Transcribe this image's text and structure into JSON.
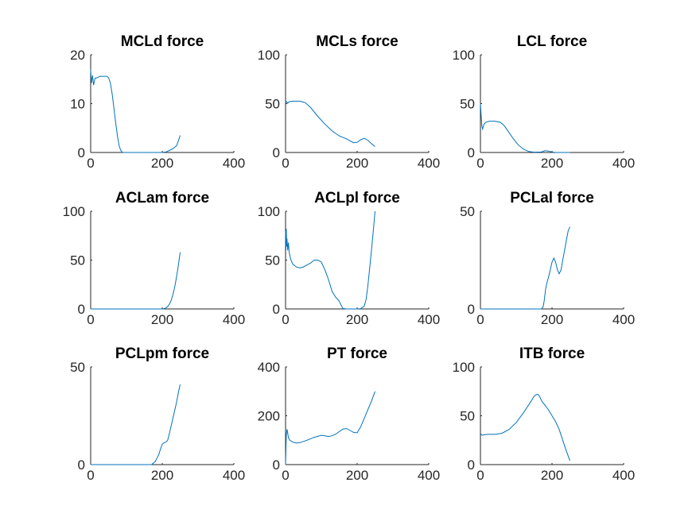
{
  "chart_data": [
    {
      "type": "line",
      "title": "MCLd force",
      "xlim": [
        0,
        400
      ],
      "ylim": [
        0,
        20
      ],
      "xticks": [
        "0",
        "200",
        "400"
      ],
      "yticks": [
        "0",
        "10",
        "20"
      ],
      "xtick_values": [
        0,
        200,
        400
      ],
      "ytick_values": [
        0,
        10,
        20
      ],
      "series": [
        {
          "color": "#0072bd",
          "x": [
            0,
            2,
            5,
            8,
            12,
            18,
            25,
            35,
            45,
            50,
            55,
            60,
            65,
            70,
            75,
            80,
            85,
            90,
            95,
            100,
            110,
            150,
            200,
            210,
            220,
            230,
            240,
            245,
            250
          ],
          "y": [
            17,
            14.2,
            15.8,
            13.8,
            15.2,
            15.3,
            15.6,
            15.6,
            15.6,
            15.3,
            14.2,
            12,
            9,
            6,
            3.2,
            1.2,
            0.3,
            0,
            0,
            0,
            0,
            0,
            0,
            0.1,
            0.4,
            0.8,
            1.4,
            2.4,
            3.5
          ]
        }
      ]
    },
    {
      "type": "line",
      "title": "MCLs force",
      "xlim": [
        0,
        400
      ],
      "ylim": [
        0,
        100
      ],
      "xticks": [
        "0",
        "200",
        "400"
      ],
      "yticks": [
        "0",
        "50",
        "100"
      ],
      "xtick_values": [
        0,
        200,
        400
      ],
      "ytick_values": [
        0,
        50,
        100
      ],
      "series": [
        {
          "color": "#0072bd",
          "x": [
            0,
            3,
            6,
            10,
            20,
            40,
            55,
            70,
            90,
            110,
            130,
            150,
            170,
            190,
            200,
            210,
            220,
            230,
            240,
            250
          ],
          "y": [
            51,
            52,
            50.5,
            52,
            52.5,
            52.5,
            51,
            46,
            37,
            29,
            22,
            17,
            14,
            10,
            10.5,
            13,
            14.5,
            12.5,
            9,
            6
          ]
        }
      ]
    },
    {
      "type": "line",
      "title": "LCL force",
      "xlim": [
        0,
        400
      ],
      "ylim": [
        0,
        100
      ],
      "xticks": [
        "0",
        "200",
        "400"
      ],
      "yticks": [
        "0",
        "50",
        "100"
      ],
      "xtick_values": [
        0,
        200,
        400
      ],
      "ytick_values": [
        0,
        50,
        100
      ],
      "series": [
        {
          "color": "#0072bd",
          "x": [
            0,
            2,
            4,
            6,
            10,
            15,
            25,
            40,
            55,
            65,
            75,
            90,
            105,
            120,
            135,
            150,
            170,
            180,
            190,
            200,
            210,
            250
          ],
          "y": [
            50,
            38,
            27,
            24,
            29,
            31,
            32,
            32,
            31,
            28,
            23,
            15,
            8,
            3.5,
            1,
            0.3,
            0.5,
            1.8,
            1.5,
            0.4,
            0,
            0
          ]
        }
      ]
    },
    {
      "type": "line",
      "title": "ACLam force",
      "xlim": [
        0,
        400
      ],
      "ylim": [
        0,
        100
      ],
      "xticks": [
        "0",
        "200",
        "400"
      ],
      "yticks": [
        "0",
        "50",
        "100"
      ],
      "xtick_values": [
        0,
        200,
        400
      ],
      "ytick_values": [
        0,
        50,
        100
      ],
      "series": [
        {
          "color": "#0072bd",
          "x": [
            0,
            100,
            200,
            205,
            210,
            215,
            220,
            225,
            230,
            235,
            240,
            245,
            250
          ],
          "y": [
            0,
            0,
            0,
            0.3,
            1,
            2.5,
            5,
            9,
            15,
            23,
            33,
            45,
            58
          ]
        }
      ]
    },
    {
      "type": "line",
      "title": "ACLpl force",
      "xlim": [
        0,
        400
      ],
      "ylim": [
        0,
        100
      ],
      "xticks": [
        "0",
        "200",
        "400"
      ],
      "yticks": [
        "0",
        "50",
        "100"
      ],
      "xtick_values": [
        0,
        200,
        400
      ],
      "ytick_values": [
        0,
        50,
        100
      ],
      "series": [
        {
          "color": "#0072bd",
          "x": [
            0,
            1,
            2,
            3,
            4,
            6,
            8,
            10,
            15,
            20,
            30,
            40,
            50,
            60,
            70,
            80,
            90,
            100,
            110,
            120,
            130,
            140,
            150,
            155,
            160,
            170,
            200,
            210,
            220,
            225,
            230,
            235,
            240,
            245,
            250
          ],
          "y": [
            80,
            60,
            82,
            64,
            72,
            60,
            68,
            58,
            50,
            46,
            43,
            42,
            43,
            45,
            47,
            50,
            50,
            48,
            40,
            30,
            18,
            12,
            8,
            4,
            0.5,
            0,
            0,
            0.3,
            3,
            10,
            24,
            42,
            60,
            80,
            100
          ]
        }
      ]
    },
    {
      "type": "line",
      "title": "PCLal force",
      "xlim": [
        0,
        400
      ],
      "ylim": [
        0,
        50
      ],
      "xticks": [
        "0",
        "200",
        "400"
      ],
      "yticks": [
        "0",
        "50"
      ],
      "xtick_values": [
        0,
        200,
        400
      ],
      "ytick_values": [
        0,
        50
      ],
      "series": [
        {
          "color": "#0072bd",
          "x": [
            0,
            100,
            170,
            175,
            178,
            182,
            185,
            190,
            195,
            200,
            205,
            210,
            215,
            220,
            225,
            230,
            235,
            240,
            245,
            250
          ],
          "y": [
            0,
            0,
            0,
            1,
            4,
            10,
            13,
            16,
            20,
            24,
            26,
            24,
            20,
            18,
            20,
            25,
            30,
            35,
            40,
            42
          ]
        }
      ]
    },
    {
      "type": "line",
      "title": "PCLpm force",
      "xlim": [
        0,
        400
      ],
      "ylim": [
        0,
        50
      ],
      "xticks": [
        "0",
        "200",
        "400"
      ],
      "yticks": [
        "0",
        "50"
      ],
      "xtick_values": [
        0,
        200,
        400
      ],
      "ytick_values": [
        0,
        50
      ],
      "series": [
        {
          "color": "#0072bd",
          "x": [
            0,
            100,
            170,
            180,
            190,
            195,
            200,
            205,
            210,
            215,
            220,
            225,
            230,
            235,
            240,
            245,
            250
          ],
          "y": [
            0,
            0,
            0,
            1.5,
            5,
            8,
            10.5,
            11.2,
            11.5,
            12.5,
            16,
            20,
            24,
            28,
            32,
            37,
            41
          ]
        }
      ]
    },
    {
      "type": "line",
      "title": "PT force",
      "xlim": [
        0,
        400
      ],
      "ylim": [
        0,
        400
      ],
      "xticks": [
        "0",
        "200",
        "400"
      ],
      "yticks": [
        "0",
        "200",
        "400"
      ],
      "xtick_values": [
        0,
        200,
        400
      ],
      "ytick_values": [
        0,
        200,
        400
      ],
      "series": [
        {
          "color": "#0072bd",
          "x": [
            0,
            2,
            4,
            6,
            8,
            12,
            20,
            30,
            40,
            60,
            80,
            100,
            110,
            120,
            130,
            140,
            150,
            160,
            170,
            180,
            190,
            200,
            210,
            220,
            230,
            240,
            250
          ],
          "y": [
            0,
            120,
            145,
            130,
            110,
            100,
            92,
            88,
            90,
            100,
            112,
            120,
            118,
            115,
            118,
            125,
            135,
            145,
            148,
            140,
            132,
            130,
            155,
            190,
            225,
            260,
            300
          ]
        }
      ]
    },
    {
      "type": "line",
      "title": "ITB force",
      "xlim": [
        0,
        400
      ],
      "ylim": [
        0,
        100
      ],
      "xticks": [
        "0",
        "200",
        "400"
      ],
      "yticks": [
        "0",
        "50",
        "100"
      ],
      "xtick_values": [
        0,
        200,
        400
      ],
      "ytick_values": [
        0,
        50,
        100
      ],
      "series": [
        {
          "color": "#0072bd",
          "x": [
            0,
            2,
            5,
            10,
            20,
            40,
            60,
            80,
            100,
            120,
            140,
            150,
            155,
            160,
            165,
            170,
            175,
            180,
            190,
            200,
            210,
            220,
            230,
            240,
            250
          ],
          "y": [
            30,
            31,
            30,
            30.5,
            31,
            31,
            32,
            36,
            43,
            53,
            64,
            70,
            71.5,
            72,
            70,
            66,
            63,
            61,
            56,
            50,
            44,
            36,
            25,
            14,
            4
          ]
        }
      ]
    }
  ]
}
